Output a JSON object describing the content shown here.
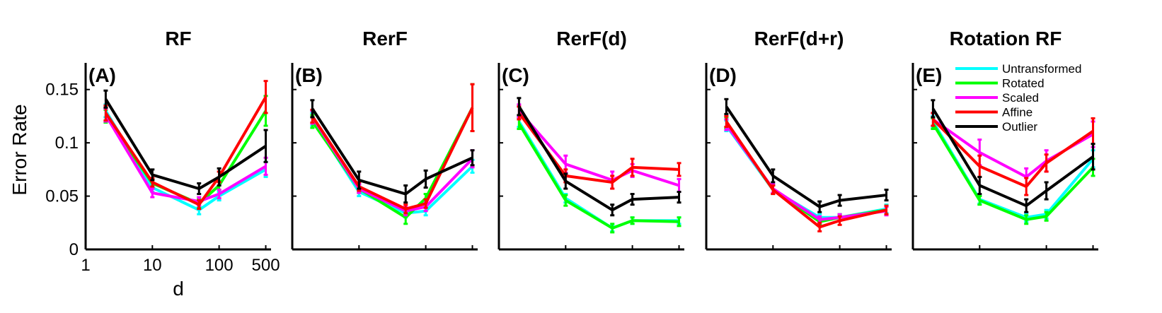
{
  "chart_data": {
    "type": "line",
    "ylabel": "Error Rate",
    "xlabel": "d",
    "x": [
      2,
      10,
      50,
      100,
      500
    ],
    "xscale": "log",
    "xlim": [
      1,
      600
    ],
    "ylim": [
      0,
      0.175
    ],
    "yticks": [
      0,
      0.05,
      0.1,
      0.15
    ],
    "ytick_labels": [
      "0",
      "0.05",
      "0.1",
      "0.15"
    ],
    "xticks": [
      1,
      10,
      100,
      500
    ],
    "xtick_labels": [
      "1",
      "10",
      "100",
      "500"
    ],
    "colors": {
      "Untransformed": "#00ffff",
      "Rotated": "#00ff00",
      "Scaled": "#ff00ff",
      "Affine": "#ff0000",
      "Outlier": "#000000"
    },
    "legend": {
      "panel": 4,
      "placement": "top-right",
      "entries": [
        "Untransformed",
        "Rotated",
        "Scaled",
        "Affine",
        "Outlier"
      ]
    },
    "panels": [
      {
        "title": "RF",
        "label": "(A)",
        "series": [
          {
            "name": "Untransformed",
            "values": [
              0.13,
              0.058,
              0.037,
              0.05,
              0.075
            ],
            "err": [
              0.006,
              0.004,
              0.004,
              0.004,
              0.007
            ]
          },
          {
            "name": "Rotated",
            "values": [
              0.125,
              0.062,
              0.043,
              0.06,
              0.13
            ],
            "err": [
              0.006,
              0.004,
              0.004,
              0.004,
              0.014
            ]
          },
          {
            "name": "Scaled",
            "values": [
              0.126,
              0.053,
              0.045,
              0.052,
              0.078
            ],
            "err": [
              0.006,
              0.004,
              0.004,
              0.004,
              0.008
            ]
          },
          {
            "name": "Affine",
            "values": [
              0.128,
              0.063,
              0.042,
              0.068,
              0.143
            ],
            "err": [
              0.007,
              0.004,
              0.004,
              0.005,
              0.015
            ]
          },
          {
            "name": "Outlier",
            "values": [
              0.141,
              0.07,
              0.057,
              0.068,
              0.097
            ],
            "err": [
              0.008,
              0.005,
              0.005,
              0.008,
              0.015
            ]
          }
        ]
      },
      {
        "title": "RerF",
        "label": "(B)",
        "series": [
          {
            "name": "Untransformed",
            "values": [
              0.122,
              0.054,
              0.034,
              0.036,
              0.078
            ],
            "err": [
              0.006,
              0.004,
              0.004,
              0.004,
              0.006
            ]
          },
          {
            "name": "Rotated",
            "values": [
              0.12,
              0.057,
              0.03,
              0.048,
              0.133
            ],
            "err": [
              0.006,
              0.004,
              0.006,
              0.004,
              0.022
            ]
          },
          {
            "name": "Scaled",
            "values": [
              0.124,
              0.057,
              0.036,
              0.04,
              0.085
            ],
            "err": [
              0.006,
              0.004,
              0.004,
              0.004,
              0.008
            ]
          },
          {
            "name": "Affine",
            "values": [
              0.125,
              0.059,
              0.038,
              0.043,
              0.133
            ],
            "err": [
              0.006,
              0.004,
              0.004,
              0.004,
              0.022
            ]
          },
          {
            "name": "Outlier",
            "values": [
              0.132,
              0.065,
              0.052,
              0.066,
              0.086
            ],
            "err": [
              0.008,
              0.008,
              0.008,
              0.008,
              0.007
            ]
          }
        ]
      },
      {
        "title": "RerF(d)",
        "label": "(C)",
        "series": [
          {
            "name": "Untransformed",
            "values": [
              0.12,
              0.048,
              0.02,
              0.027,
              0.027
            ],
            "err": [
              0.005,
              0.004,
              0.003,
              0.003,
              0.003
            ]
          },
          {
            "name": "Rotated",
            "values": [
              0.118,
              0.046,
              0.02,
              0.027,
              0.026
            ],
            "err": [
              0.005,
              0.005,
              0.004,
              0.003,
              0.004
            ]
          },
          {
            "name": "Scaled",
            "values": [
              0.13,
              0.08,
              0.065,
              0.074,
              0.06
            ],
            "err": [
              0.006,
              0.008,
              0.008,
              0.006,
              0.006
            ]
          },
          {
            "name": "Affine",
            "values": [
              0.128,
              0.069,
              0.063,
              0.077,
              0.075
            ],
            "err": [
              0.006,
              0.006,
              0.006,
              0.008,
              0.006
            ]
          },
          {
            "name": "Outlier",
            "values": [
              0.134,
              0.064,
              0.037,
              0.047,
              0.049
            ],
            "err": [
              0.008,
              0.007,
              0.005,
              0.005,
              0.005
            ]
          }
        ]
      },
      {
        "title": "RerF(d+r)",
        "label": "(D)",
        "series": [
          {
            "name": "Untransformed",
            "values": [
              0.116,
              0.056,
              0.03,
              0.03,
              0.038
            ],
            "err": [
              0.005,
              0.004,
              0.003,
              0.003,
              0.004
            ]
          },
          {
            "name": "Rotated",
            "values": [
              0.119,
              0.056,
              0.026,
              0.03,
              0.037
            ],
            "err": [
              0.005,
              0.004,
              0.003,
              0.003,
              0.004
            ]
          },
          {
            "name": "Scaled",
            "values": [
              0.117,
              0.057,
              0.028,
              0.03,
              0.036
            ],
            "err": [
              0.005,
              0.004,
              0.003,
              0.003,
              0.004
            ]
          },
          {
            "name": "Affine",
            "values": [
              0.12,
              0.056,
              0.021,
              0.027,
              0.037
            ],
            "err": [
              0.005,
              0.004,
              0.004,
              0.004,
              0.004
            ]
          },
          {
            "name": "Outlier",
            "values": [
              0.134,
              0.069,
              0.04,
              0.046,
              0.051
            ],
            "err": [
              0.007,
              0.006,
              0.005,
              0.005,
              0.005
            ]
          }
        ]
      },
      {
        "title": "Rotation RF",
        "label": "(E)",
        "series": [
          {
            "name": "Untransformed",
            "values": [
              0.12,
              0.047,
              0.03,
              0.033,
              0.085
            ],
            "err": [
              0.005,
              0.004,
              0.004,
              0.004,
              0.008
            ]
          },
          {
            "name": "Rotated",
            "values": [
              0.118,
              0.046,
              0.028,
              0.031,
              0.077
            ],
            "err": [
              0.005,
              0.004,
              0.004,
              0.004,
              0.008
            ]
          },
          {
            "name": "Scaled",
            "values": [
              0.122,
              0.091,
              0.068,
              0.083,
              0.108
            ],
            "err": [
              0.006,
              0.012,
              0.008,
              0.01,
              0.012
            ]
          },
          {
            "name": "Affine",
            "values": [
              0.122,
              0.078,
              0.059,
              0.081,
              0.111
            ],
            "err": [
              0.006,
              0.01,
              0.008,
              0.008,
              0.012
            ]
          },
          {
            "name": "Outlier",
            "values": [
              0.132,
              0.06,
              0.041,
              0.055,
              0.087
            ],
            "err": [
              0.008,
              0.008,
              0.006,
              0.008,
              0.012
            ]
          }
        ]
      }
    ]
  }
}
